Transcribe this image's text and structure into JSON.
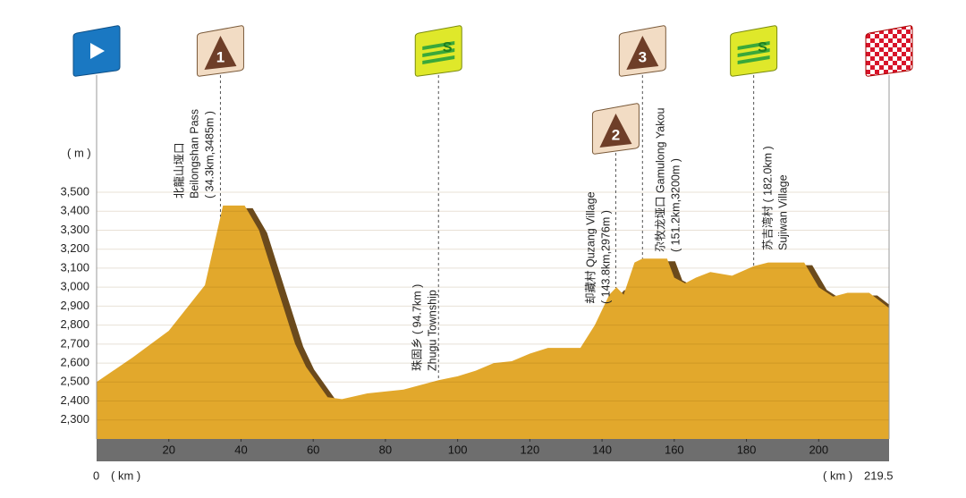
{
  "chart_data": {
    "type": "area",
    "ylabel": "( m )",
    "xlabel": "( km )",
    "xlim": [
      0,
      219.5
    ],
    "ylim": [
      2200,
      3500
    ],
    "xticks": [
      20,
      40,
      60,
      80,
      100,
      120,
      140,
      160,
      180,
      200
    ],
    "yticks": [
      {
        "value": 2300,
        "label": "2,300"
      },
      {
        "value": 2400,
        "label": "2,400"
      },
      {
        "value": 2500,
        "label": "2,500"
      },
      {
        "value": 2600,
        "label": "2,600"
      },
      {
        "value": 2700,
        "label": "2,700"
      },
      {
        "value": 2800,
        "label": "2,800"
      },
      {
        "value": 2900,
        "label": "2,900"
      },
      {
        "value": 3000,
        "label": "3,000"
      },
      {
        "value": 3100,
        "label": "3,100"
      },
      {
        "value": 3200,
        "label": "3,200"
      },
      {
        "value": 3300,
        "label": "3,300"
      },
      {
        "value": 3400,
        "label": "3,400"
      },
      {
        "value": 3500,
        "label": "3,500"
      }
    ],
    "grid": true,
    "color": "#e2a82c",
    "shade_color": "#6b4a1c",
    "x": [
      0,
      10,
      20,
      30,
      35,
      41,
      45,
      50,
      55,
      58,
      64,
      68,
      75,
      85,
      94.7,
      100,
      105,
      110,
      115,
      120,
      125,
      134,
      138,
      142,
      144,
      146,
      149,
      151.2,
      158,
      160,
      163,
      166,
      170,
      176,
      182,
      186,
      196,
      200,
      204,
      208,
      214,
      219.5
    ],
    "values": [
      2500,
      2630,
      2770,
      3010,
      3430,
      3430,
      3300,
      3000,
      2700,
      2580,
      2420,
      2410,
      2440,
      2460,
      2510,
      2530,
      2560,
      2600,
      2610,
      2650,
      2680,
      2680,
      2800,
      2960,
      3000,
      2960,
      3130,
      3150,
      3150,
      3050,
      3020,
      3050,
      3080,
      3060,
      3110,
      3130,
      3130,
      3000,
      2950,
      2970,
      2970,
      2890
    ],
    "markers": [
      {
        "km": 0,
        "kind": "start"
      },
      {
        "km": 34.3,
        "kind": "kom",
        "label": "1",
        "texts": [
          "北龍山垭口",
          "Beilongshan Pass",
          "( 34.3km,3485m )"
        ]
      },
      {
        "km": 94.7,
        "kind": "sprint",
        "label": "S",
        "texts": [
          "珠固乡 ( 94.7km )",
          "Zhugu Township"
        ]
      },
      {
        "km": 143.8,
        "kind": "kom",
        "label": "2",
        "texts": [
          "却藏村 Quzang Village",
          "( 143.8km,2976m )"
        ]
      },
      {
        "km": 151.2,
        "kind": "kom",
        "label": "3",
        "texts": [
          "尕牧龙垭口 Gamulong Yakou",
          "( 151.2km,3200m )"
        ]
      },
      {
        "km": 182.0,
        "kind": "sprint",
        "label": "S",
        "texts": [
          "苏吉湾村 ( 182.0km )",
          "Sujiwan Village"
        ]
      },
      {
        "km": 219.5,
        "kind": "finish"
      }
    ]
  }
}
